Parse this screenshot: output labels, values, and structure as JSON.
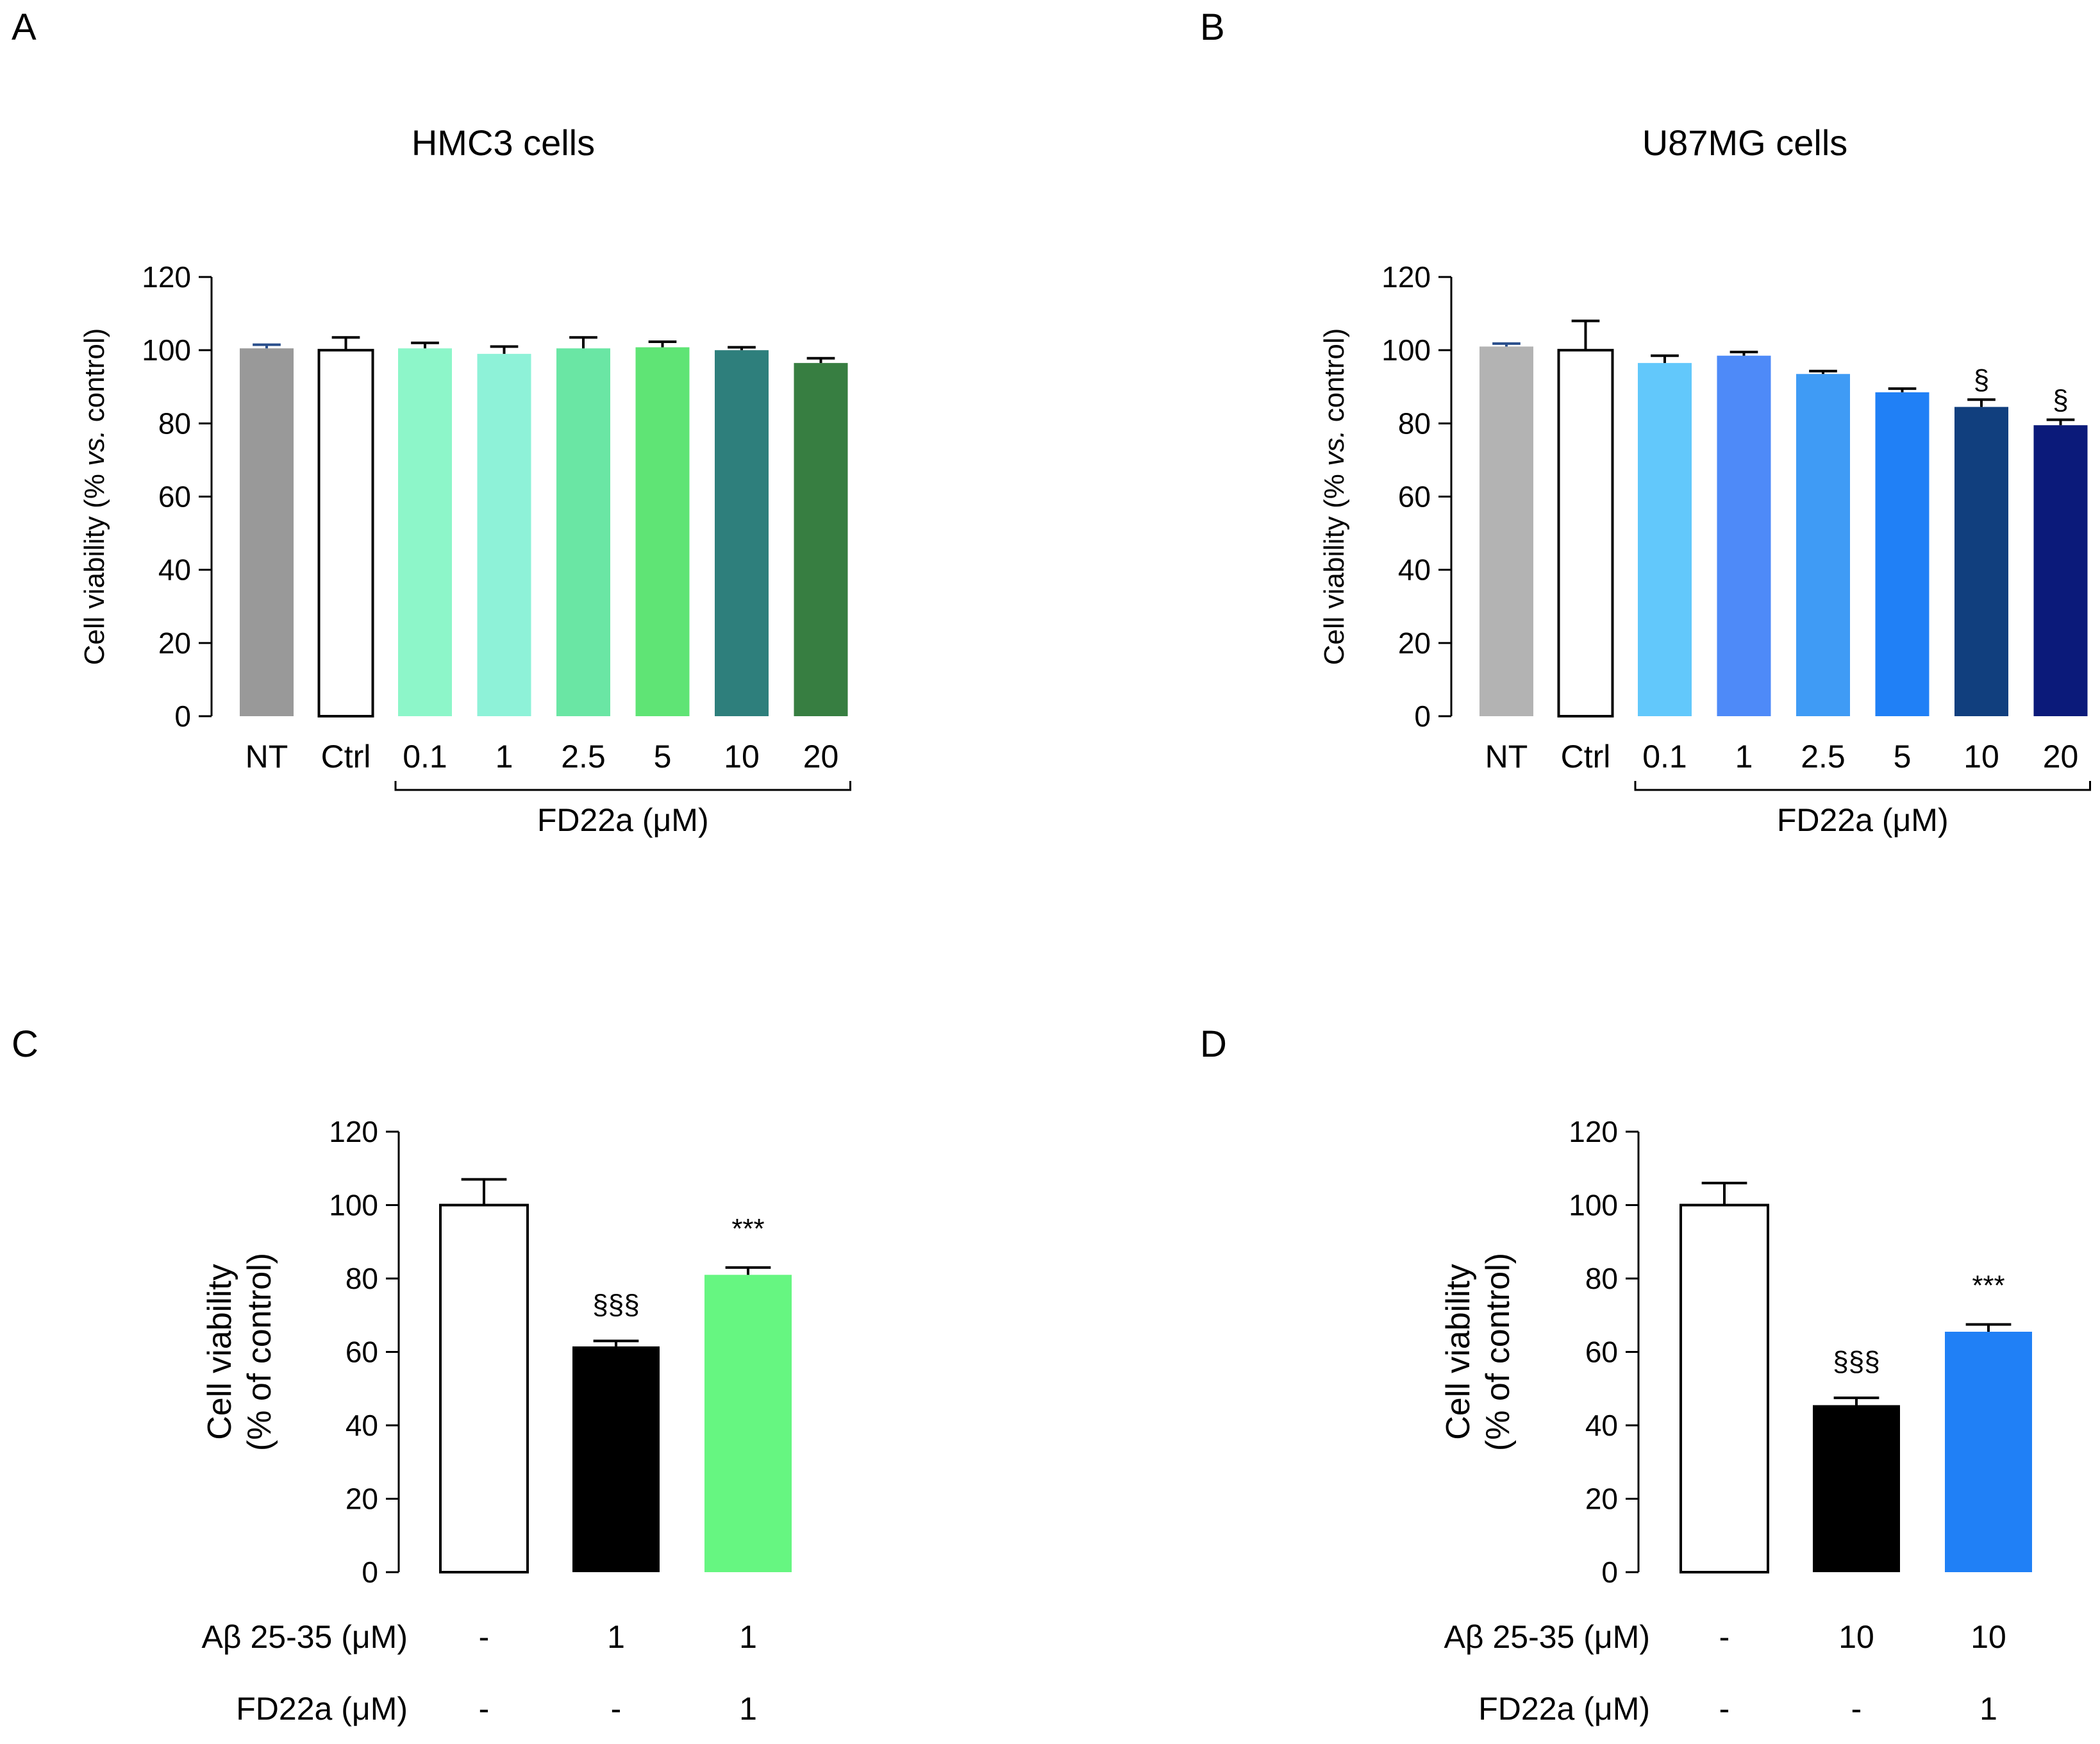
{
  "panels": {
    "a": "A",
    "b": "B",
    "c": "C",
    "d": "D"
  },
  "chart_data": [
    {
      "id": "A",
      "type": "bar",
      "title": "HMC3 cells",
      "ylabel_parts": [
        "Cell viability (% ",
        "vs.",
        " control)"
      ],
      "ylim": [
        0,
        120
      ],
      "yticks": [
        0,
        20,
        40,
        60,
        80,
        100,
        120
      ],
      "categories": [
        "NT",
        "Ctrl",
        "0.1",
        "1",
        "2.5",
        "5",
        "10",
        "20"
      ],
      "values": [
        100.5,
        100,
        100.5,
        99,
        100.5,
        100.8,
        100,
        96.5
      ],
      "errors": [
        1,
        3.5,
        1.5,
        2,
        3,
        1.5,
        0.8,
        1.3
      ],
      "colors": [
        "#999999",
        "#ffffff",
        "#8df6c9",
        "#8ef2d8",
        "#6ae6a4",
        "#5fe475",
        "#2e7f7c",
        "#377e41"
      ],
      "error_colors": [
        "#2a4f8c",
        "#000000",
        "#000000",
        "#000000",
        "#000000",
        "#000000",
        "#000000",
        "#000000"
      ],
      "annotations": [
        "",
        "",
        "",
        "",
        "",
        "",
        "",
        ""
      ],
      "bracket": {
        "from": 2,
        "to": 7,
        "label": "FD22a (μM)"
      }
    },
    {
      "id": "B",
      "type": "bar",
      "title": "U87MG cells",
      "ylabel_parts": [
        "Cell viability (% ",
        "vs.",
        " control)"
      ],
      "ylim": [
        0,
        120
      ],
      "yticks": [
        0,
        20,
        40,
        60,
        80,
        100,
        120
      ],
      "categories": [
        "NT",
        "Ctrl",
        "0.1",
        "1",
        "2.5",
        "5",
        "10",
        "20"
      ],
      "values": [
        101,
        100,
        96.5,
        98.5,
        93.5,
        88.5,
        84.5,
        79.5
      ],
      "errors": [
        0.8,
        8,
        2,
        1,
        0.8,
        1,
        2,
        1.5
      ],
      "colors": [
        "#b3b3b3",
        "#ffffff",
        "#62c8fb",
        "#4e8af8",
        "#3f9bf5",
        "#2080f6",
        "#113f7e",
        "#0b1a7a"
      ],
      "error_colors": [
        "#2a4f8c",
        "#000000",
        "#000000",
        "#000000",
        "#000000",
        "#000000",
        "#000000",
        "#000000"
      ],
      "annotations": [
        "",
        "",
        "",
        "",
        "",
        "",
        "§",
        "§"
      ],
      "bracket": {
        "from": 2,
        "to": 7,
        "label": "FD22a (μM)"
      }
    },
    {
      "id": "C",
      "type": "bar",
      "title": "",
      "ylabel_lines": [
        "Cell viability",
        "(% of control)"
      ],
      "ylim": [
        0,
        120
      ],
      "yticks": [
        0,
        20,
        40,
        60,
        80,
        100,
        120
      ],
      "values": [
        100,
        61.5,
        81
      ],
      "errors": [
        7,
        1.5,
        2
      ],
      "colors": [
        "#ffffff",
        "#000000",
        "#66f681"
      ],
      "annotations": [
        "",
        "§§§",
        "***"
      ],
      "rows": [
        {
          "label": "Aβ  25-35 (μM)",
          "values": [
            "-",
            "1",
            "1"
          ]
        },
        {
          "label": "FD22a (μM)",
          "values": [
            "-",
            "-",
            "1"
          ]
        }
      ]
    },
    {
      "id": "D",
      "type": "bar",
      "title": "",
      "ylabel_lines": [
        "Cell viability",
        "(% of control)"
      ],
      "ylim": [
        0,
        120
      ],
      "yticks": [
        0,
        20,
        40,
        60,
        80,
        100,
        120
      ],
      "values": [
        100,
        45.5,
        65.5
      ],
      "errors": [
        6,
        2,
        2
      ],
      "colors": [
        "#ffffff",
        "#000000",
        "#2080f6"
      ],
      "annotations": [
        "",
        "§§§",
        "***"
      ],
      "rows": [
        {
          "label": "Aβ  25-35 (μM)",
          "values": [
            "-",
            "10",
            "10"
          ]
        },
        {
          "label": "FD22a (μM)",
          "values": [
            "-",
            "-",
            "1"
          ]
        }
      ]
    }
  ]
}
